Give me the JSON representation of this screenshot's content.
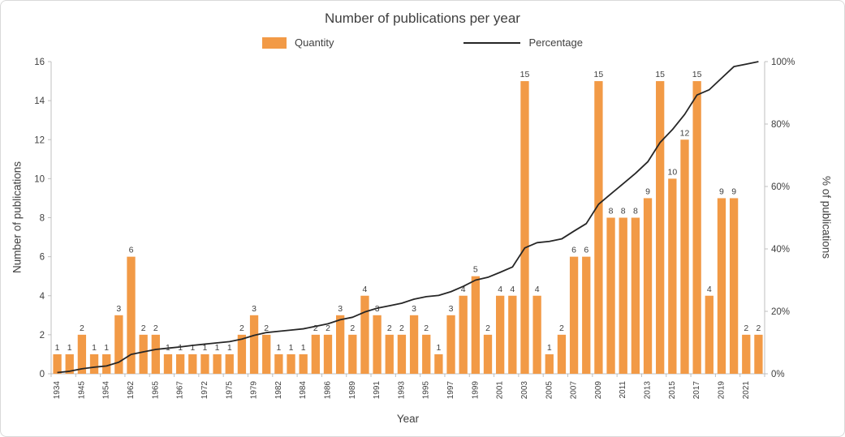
{
  "chart_data": {
    "type": "bar+line combo (column chart with cumulative percentage line)",
    "title": "Number of publications per year",
    "xlabel": "Year",
    "ylabel_left": "Number of publications",
    "ylabel_right": "% of publications",
    "legend": {
      "bar_label": "Quantity",
      "line_label": "Percentage"
    },
    "colors": {
      "bar": "#F29A46",
      "line": "#262626",
      "axis": "#BFBFBF",
      "text": "#3F3F3F"
    },
    "axes": {
      "left_ticks": [
        0,
        2,
        4,
        6,
        8,
        10,
        12,
        14,
        16
      ],
      "left_max": 16,
      "right_ticks": [
        "0%",
        "20%",
        "40%",
        "60%",
        "80%",
        "100%"
      ],
      "right_max": 100,
      "grid": false,
      "legend_position": "top"
    },
    "x_tick_labels": [
      "1934",
      "1945",
      "1954",
      "1962",
      "1965",
      "1967",
      "1972",
      "1975",
      "1979",
      "1982",
      "1984",
      "1986",
      "1989",
      "1991",
      "1993",
      "1995",
      "1997",
      "1999",
      "2001",
      "2003",
      "2005",
      "2007",
      "2009",
      "2011",
      "2013",
      "2015",
      "2017",
      "2019",
      "2021"
    ],
    "x_label_interval": 2,
    "bars": [
      1,
      1,
      2,
      1,
      1,
      3,
      6,
      2,
      2,
      1,
      1,
      1,
      1,
      1,
      1,
      2,
      3,
      2,
      1,
      1,
      1,
      2,
      2,
      3,
      2,
      4,
      3,
      2,
      2,
      3,
      2,
      1,
      3,
      4,
      5,
      2,
      4,
      4,
      15,
      4,
      1,
      2,
      6,
      6,
      15,
      8,
      8,
      8,
      9,
      15,
      10,
      12,
      15,
      4,
      9,
      9,
      2,
      2
    ],
    "percent_cumulative": [
      0.4,
      0.8,
      1.6,
      2.1,
      2.5,
      3.7,
      6.2,
      7.0,
      7.8,
      8.2,
      8.6,
      9.1,
      9.5,
      9.9,
      10.3,
      11.1,
      12.3,
      13.2,
      13.6,
      14.0,
      14.4,
      15.2,
      16.0,
      17.3,
      18.1,
      19.8,
      21.0,
      21.8,
      22.6,
      23.9,
      24.7,
      25.1,
      26.3,
      28.0,
      30.0,
      30.9,
      32.5,
      34.2,
      40.3,
      42.0,
      42.4,
      43.2,
      45.7,
      48.1,
      54.3,
      57.6,
      60.9,
      64.2,
      67.9,
      74.1,
      78.2,
      83.1,
      89.3,
      91.0,
      94.7,
      98.4,
      99.2,
      100.0
    ],
    "percentage_note": "Black line is the cumulative percentage of total publications, rising from ~0% to 100%"
  }
}
